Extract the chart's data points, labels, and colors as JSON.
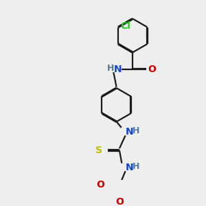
{
  "bg_color": "#eeeeee",
  "bond_color": "#1a1a1a",
  "atom_colors": {
    "Cl": "#22cc22",
    "O": "#cc0000",
    "N": "#1144cc",
    "H": "#557799",
    "S": "#bbbb00"
  },
  "line_width": 1.6,
  "font_size_atom": 10,
  "font_size_h": 9
}
